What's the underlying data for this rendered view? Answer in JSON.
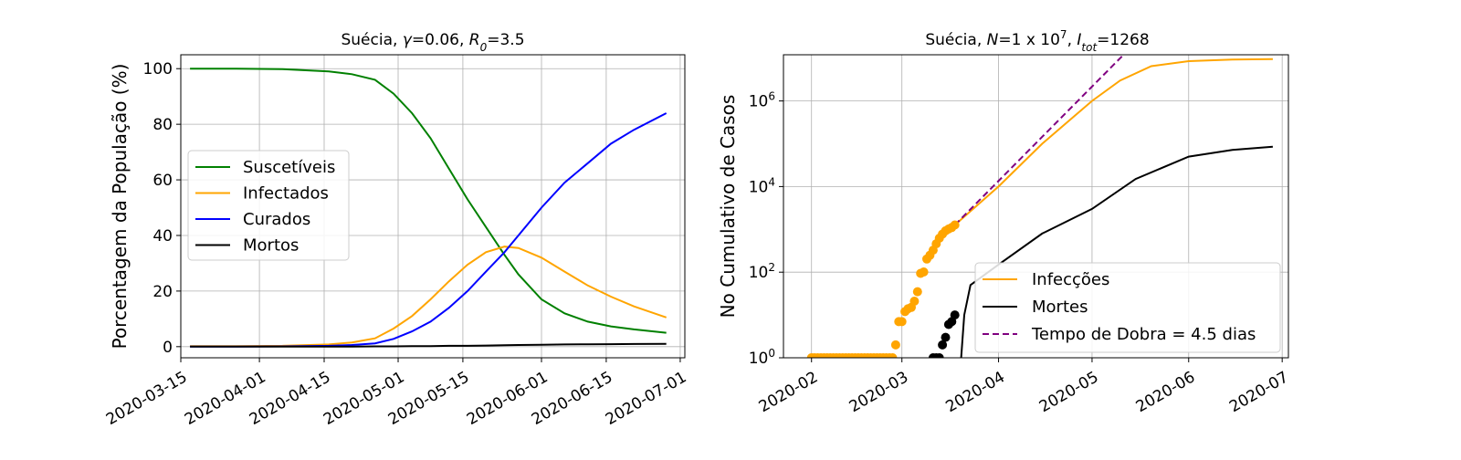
{
  "chart_data": [
    {
      "type": "line",
      "title_main": "Suécia,",
      "title_params": [
        {
          "sym": "γ",
          "sub": "",
          "val": "0.06"
        },
        {
          "sym": "R",
          "sub": "0",
          "val": "3.5"
        }
      ],
      "xlabel": "",
      "ylabel": "Porcentagem da População (%)",
      "x_ticks": [
        "2020-03-15",
        "2020-04-01",
        "2020-04-15",
        "2020-05-01",
        "2020-05-15",
        "2020-06-01",
        "2020-06-15",
        "2020-07-01"
      ],
      "xlim": [
        "2020-03-15",
        "2020-07-02"
      ],
      "ylim": [
        -4,
        105
      ],
      "y_ticks": [
        0,
        20,
        40,
        60,
        80,
        100
      ],
      "grid": true,
      "legend_position": "center-left",
      "x": [
        "2020-03-17",
        "2020-03-27",
        "2020-04-06",
        "2020-04-16",
        "2020-04-21",
        "2020-04-26",
        "2020-04-30",
        "2020-05-04",
        "2020-05-08",
        "2020-05-12",
        "2020-05-16",
        "2020-05-20",
        "2020-05-24",
        "2020-05-27",
        "2020-06-01",
        "2020-06-06",
        "2020-06-11",
        "2020-06-16",
        "2020-06-21",
        "2020-06-28"
      ],
      "series": [
        {
          "name": "Suscetíveis",
          "color": "#008000",
          "values": [
            100,
            100,
            99.8,
            99,
            98,
            96,
            91,
            84,
            75,
            64,
            53,
            43,
            33,
            26,
            17,
            12,
            9,
            7.3,
            6.2,
            5
          ]
        },
        {
          "name": "Infectados",
          "color": "#FFA500",
          "values": [
            0.2,
            0.2,
            0.3,
            0.8,
            1.5,
            3,
            6.5,
            11,
            17,
            23.5,
            29.5,
            34,
            36,
            35.5,
            32,
            27,
            22,
            18,
            14.5,
            10.5
          ]
        },
        {
          "name": "Curados",
          "color": "#0000FF",
          "values": [
            0,
            0,
            0.1,
            0.3,
            0.6,
            1.2,
            2.8,
            5.5,
            9,
            14,
            20,
            27,
            34,
            40,
            50,
            59,
            66,
            73,
            78,
            84
          ]
        },
        {
          "name": "Mortos",
          "color": "#000000",
          "values": [
            0,
            0,
            0,
            0,
            0,
            0.1,
            0.1,
            0.2,
            0.2,
            0.3,
            0.3,
            0.4,
            0.5,
            0.6,
            0.7,
            0.8,
            0.85,
            0.9,
            0.95,
            1
          ]
        }
      ]
    },
    {
      "type": "line",
      "title_main": "Suécia,",
      "title_params": [
        {
          "sym": "N",
          "sub": "",
          "val": "1 x 10",
          "sup": "7"
        },
        {
          "sym": "I",
          "sub": "tot",
          "val": "1268"
        }
      ],
      "xlabel": "",
      "ylabel": "No Cumulativo de Casos",
      "y_scale": "log",
      "ylim": [
        1,
        12000000
      ],
      "y_ticks": [
        {
          "base": "10",
          "exp": "0"
        },
        {
          "base": "10",
          "exp": "2"
        },
        {
          "base": "10",
          "exp": "4"
        },
        {
          "base": "10",
          "exp": "6"
        }
      ],
      "x_ticks": [
        "2020-02",
        "2020-03",
        "2020-04",
        "2020-05",
        "2020-06",
        "2020-07"
      ],
      "xlim": [
        "2020-01-23",
        "2020-07-03"
      ],
      "grid": true,
      "legend_position": "lower-right",
      "series": [
        {
          "name": "Infecções",
          "color": "#FFA500",
          "style": "solid",
          "x": [
            "2020-03-18",
            "2020-04-01",
            "2020-04-15",
            "2020-05-01",
            "2020-05-10",
            "2020-05-20",
            "2020-06-01",
            "2020-06-15",
            "2020-06-28"
          ],
          "values": [
            1268,
            10000,
            100000,
            1000000,
            3000000,
            6500000,
            8500000,
            9300000,
            9500000
          ]
        },
        {
          "name": "Mortes",
          "color": "#000000",
          "style": "solid",
          "x": [
            "2020-03-20",
            "2020-03-21",
            "2020-03-23",
            "2020-04-01",
            "2020-04-15",
            "2020-05-01",
            "2020-05-15",
            "2020-06-01",
            "2020-06-15",
            "2020-06-28"
          ],
          "values": [
            1,
            10,
            50,
            150,
            800,
            3000,
            15000,
            50000,
            72000,
            85000
          ]
        },
        {
          "name": "Tempo de Dobra = 4.5 dias",
          "color": "#800080",
          "style": "dashed",
          "x": [
            "2020-03-18",
            "2020-05-12"
          ],
          "values": [
            1268,
            14000000
          ]
        }
      ],
      "scatter": [
        {
          "color": "#FFA500",
          "x": [
            "2020-02-01",
            "2020-02-02",
            "2020-02-03",
            "2020-02-04",
            "2020-02-05",
            "2020-02-06",
            "2020-02-07",
            "2020-02-08",
            "2020-02-09",
            "2020-02-10",
            "2020-02-11",
            "2020-02-12",
            "2020-02-13",
            "2020-02-14",
            "2020-02-15",
            "2020-02-16",
            "2020-02-17",
            "2020-02-18",
            "2020-02-19",
            "2020-02-20",
            "2020-02-21",
            "2020-02-22",
            "2020-02-23",
            "2020-02-24",
            "2020-02-25",
            "2020-02-26",
            "2020-02-27",
            "2020-02-28",
            "2020-02-29",
            "2020-03-01",
            "2020-03-02",
            "2020-03-03",
            "2020-03-04",
            "2020-03-05",
            "2020-03-06",
            "2020-03-07",
            "2020-03-08",
            "2020-03-09",
            "2020-03-10",
            "2020-03-11",
            "2020-03-12",
            "2020-03-13",
            "2020-03-14",
            "2020-03-15",
            "2020-03-16",
            "2020-03-17",
            "2020-03-18"
          ],
          "values": [
            1,
            1,
            1,
            1,
            1,
            1,
            1,
            1,
            1,
            1,
            1,
            1,
            1,
            1,
            1,
            1,
            1,
            1,
            1,
            1,
            1,
            1,
            1,
            1,
            1,
            1,
            1,
            2,
            7,
            7,
            12,
            14,
            15,
            21,
            35,
            94,
            101,
            203,
            248,
            326,
            461,
            620,
            775,
            924,
            1022,
            1103,
            1268
          ]
        },
        {
          "color": "#000000",
          "x": [
            "2020-03-11",
            "2020-03-12",
            "2020-03-13",
            "2020-03-14",
            "2020-03-15",
            "2020-03-16",
            "2020-03-17",
            "2020-03-18"
          ],
          "values": [
            1,
            1,
            1,
            2,
            3,
            6,
            7,
            10
          ]
        }
      ]
    }
  ]
}
